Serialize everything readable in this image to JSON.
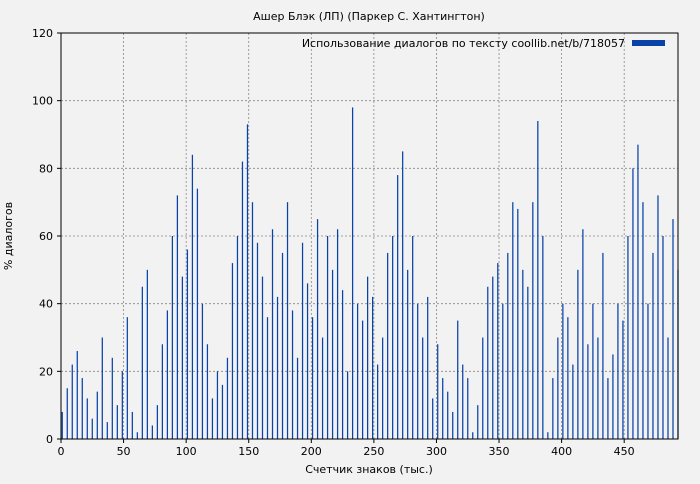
{
  "chart_data": {
    "type": "bar",
    "title": "Ашер Блэк (ЛП) (Паркер С. Хантингтон)",
    "xlabel": "Счетчик знаков (тыс.)",
    "ylabel": "% диалогов",
    "legend_label": "Использование диалогов по тексту coollib.net/b/718057",
    "legend_position": "top-right",
    "grid": true,
    "series_color": "#0a43a8",
    "xlim": [
      0,
      493
    ],
    "ylim": [
      0,
      120
    ],
    "x_ticks": [
      0,
      50,
      100,
      150,
      200,
      250,
      300,
      350,
      400,
      450
    ],
    "y_ticks": [
      0,
      20,
      40,
      60,
      80,
      100,
      120
    ],
    "bar_width": 1,
    "x": [
      1,
      5,
      9,
      13,
      17,
      21,
      25,
      29,
      33,
      37,
      41,
      45,
      49,
      53,
      57,
      61,
      65,
      69,
      73,
      77,
      81,
      85,
      89,
      93,
      97,
      101,
      105,
      109,
      113,
      117,
      121,
      125,
      129,
      133,
      137,
      141,
      145,
      149,
      153,
      157,
      161,
      165,
      169,
      173,
      177,
      181,
      185,
      189,
      193,
      197,
      201,
      205,
      209,
      213,
      217,
      221,
      225,
      229,
      233,
      237,
      241,
      245,
      249,
      253,
      257,
      261,
      265,
      269,
      273,
      277,
      281,
      285,
      289,
      293,
      297,
      301,
      305,
      309,
      313,
      317,
      321,
      325,
      329,
      333,
      337,
      341,
      345,
      349,
      353,
      357,
      361,
      365,
      369,
      373,
      377,
      381,
      385,
      389,
      393,
      397,
      401,
      405,
      409,
      413,
      417,
      421,
      425,
      429,
      433,
      437,
      441,
      445,
      449,
      453,
      457,
      461,
      465,
      469,
      473,
      477,
      481,
      485,
      489,
      493
    ],
    "values": [
      8,
      15,
      22,
      26,
      18,
      12,
      6,
      14,
      30,
      5,
      24,
      10,
      20,
      36,
      8,
      2,
      45,
      50,
      4,
      10,
      28,
      38,
      60,
      72,
      48,
      56,
      84,
      74,
      40,
      28,
      12,
      20,
      16,
      24,
      52,
      60,
      82,
      93,
      70,
      58,
      48,
      36,
      62,
      42,
      55,
      70,
      38,
      24,
      58,
      46,
      36,
      65,
      30,
      60,
      50,
      62,
      44,
      20,
      98,
      40,
      35,
      48,
      42,
      22,
      30,
      55,
      60,
      78,
      85,
      50,
      60,
      40,
      30,
      42,
      12,
      28,
      18,
      14,
      8,
      35,
      22,
      18,
      2,
      10,
      30,
      45,
      48,
      52,
      40,
      55,
      70,
      68,
      50,
      45,
      70,
      94,
      60,
      2,
      18,
      30,
      40,
      36,
      22,
      50,
      62,
      28,
      40,
      30,
      55,
      18,
      25,
      40,
      35,
      60,
      80,
      87,
      70,
      40,
      55,
      72,
      60,
      30,
      65,
      50
    ]
  }
}
